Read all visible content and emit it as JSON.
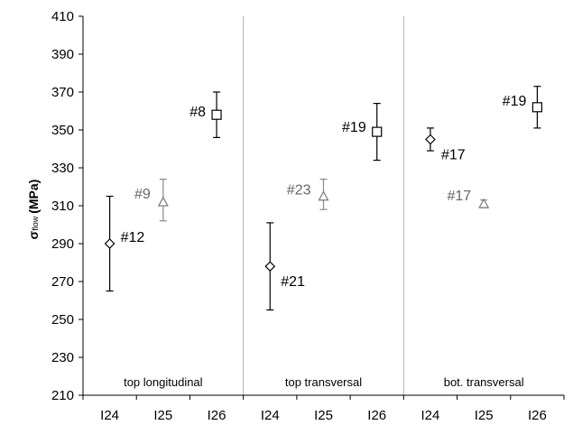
{
  "chart_data": {
    "type": "scatter",
    "ylabel_symbol": "σ",
    "ylabel_subscript": "flow",
    "ylabel_unit": "(MPa)",
    "ylim": [
      210,
      410
    ],
    "yticks": [
      210,
      230,
      250,
      270,
      290,
      310,
      330,
      350,
      370,
      390,
      410
    ],
    "grid": false,
    "groups": [
      {
        "label": "top longitudinal",
        "points": [
          {
            "x": "I24",
            "y": 290,
            "err_low": 265,
            "err_high": 315,
            "marker": "diamond",
            "label": "#12",
            "label_color": "#000000"
          },
          {
            "x": "I25",
            "y": 312,
            "err_low": 302,
            "err_high": 324,
            "marker": "triangle",
            "label": "#9",
            "label_color": "#666666"
          },
          {
            "x": "I26",
            "y": 358,
            "err_low": 346,
            "err_high": 370,
            "marker": "square",
            "label": "#8",
            "label_color": "#000000"
          }
        ]
      },
      {
        "label": "top transversal",
        "points": [
          {
            "x": "I24",
            "y": 278,
            "err_low": 255,
            "err_high": 301,
            "marker": "diamond",
            "label": "#21",
            "label_color": "#000000"
          },
          {
            "x": "I25",
            "y": 315,
            "err_low": 308,
            "err_high": 324,
            "marker": "triangle",
            "label": "#23",
            "label_color": "#666666"
          },
          {
            "x": "I26",
            "y": 349,
            "err_low": 334,
            "err_high": 364,
            "marker": "square",
            "label": "#19",
            "label_color": "#000000"
          }
        ]
      },
      {
        "label": "bot. transversal",
        "points": [
          {
            "x": "I24",
            "y": 345,
            "err_low": 339,
            "err_high": 351,
            "marker": "diamond",
            "label": "#17",
            "label_color": "#000000"
          },
          {
            "x": "I25",
            "y": 311,
            "err_low": 309,
            "err_high": 313,
            "marker": "triangle",
            "label": "#17",
            "label_color": "#666666"
          },
          {
            "x": "I26",
            "y": 362,
            "err_low": 351,
            "err_high": 373,
            "marker": "square",
            "label": "#19",
            "label_color": "#000000"
          }
        ]
      }
    ],
    "colors": {
      "axis": "#000000",
      "separator": "#b0b0b0",
      "marker": "#000000",
      "marker_gray": "#777777",
      "errorbar": "#000000",
      "errorbar_gray": "#888888"
    }
  }
}
